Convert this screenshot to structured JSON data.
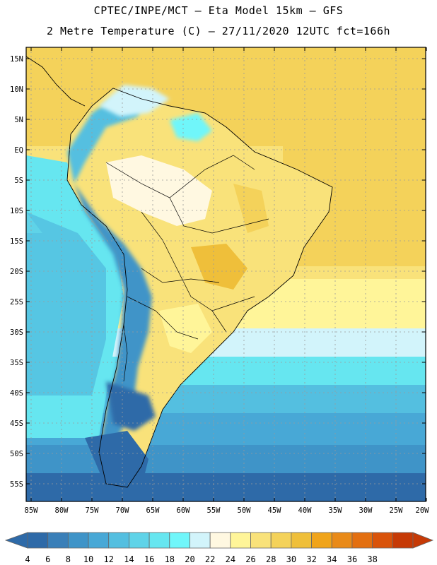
{
  "title_line1": "CPTEC/INPE/MCT –  Eta Model 15km – GFS",
  "title_line2": "2 Metre Temperature (C) – 27/11/2020 12UTC fct=166h",
  "lat_labels": [
    "15N",
    "10N",
    "5N",
    "EQ",
    "5S",
    "10S",
    "15S",
    "20S",
    "25S",
    "30S",
    "35S",
    "40S",
    "45S",
    "50S",
    "55S"
  ],
  "lon_labels": [
    "85W",
    "80W",
    "75W",
    "70W",
    "65W",
    "60W",
    "55W",
    "50W",
    "45W",
    "40W",
    "35W",
    "30W",
    "25W",
    "20W"
  ],
  "colorbar": {
    "ticks": [
      "4",
      "6",
      "8",
      "10",
      "12",
      "14",
      "16",
      "18",
      "20",
      "22",
      "24",
      "26",
      "28",
      "30",
      "32",
      "34",
      "36",
      "38"
    ],
    "colors": [
      "#2e6aa8",
      "#3a7fb8",
      "#3f94c8",
      "#48a8d6",
      "#54bfe0",
      "#5fd3e8",
      "#66e6f0",
      "#70f6fa",
      "#d2f4fb",
      "#fff8e1",
      "#fff599",
      "#f9e27a",
      "#f4d25a",
      "#efbf3a",
      "#f0a41a",
      "#e98a18",
      "#e36f10",
      "#d9530a",
      "#c63a06"
    ]
  }
}
